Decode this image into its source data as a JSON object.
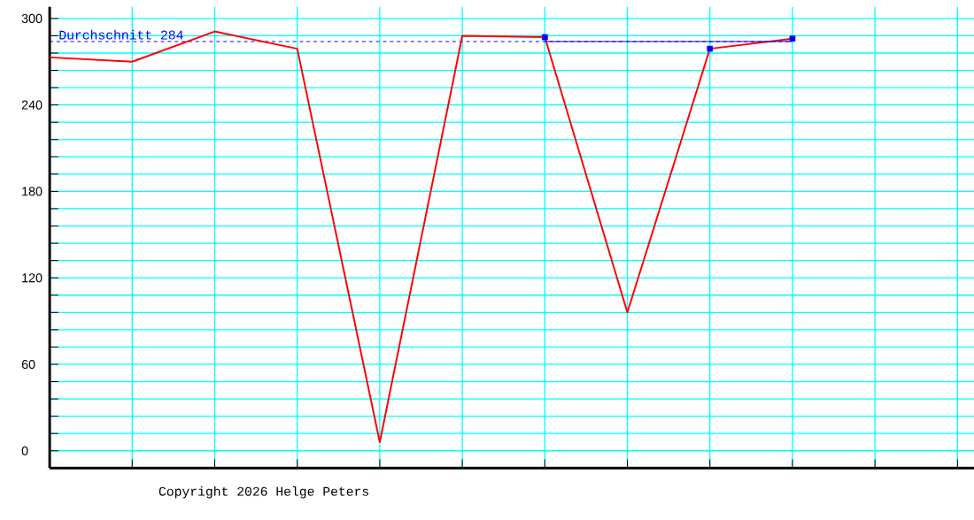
{
  "chart_data": {
    "type": "line",
    "categories": [
      null,
      null,
      null,
      null,
      null,
      null,
      null,
      null,
      null,
      null,
      null,
      null
    ],
    "series": [
      {
        "color": "#ff0000",
        "values": [
          273,
          270,
          291,
          279,
          6,
          288,
          287,
          96,
          279,
          286,
          null,
          null
        ]
      },
      {
        "type": "line",
        "color": "#0000ff",
        "values": [
          null,
          null,
          null,
          null,
          null,
          null,
          284,
          284,
          284,
          284,
          null,
          null
        ]
      },
      {
        "type": "scatter",
        "color": "#0000ff",
        "marker": "square",
        "values": [
          null,
          null,
          null,
          null,
          null,
          null,
          287,
          null,
          279,
          286,
          null,
          null
        ]
      }
    ],
    "ylim": [
      -12,
      308
    ],
    "yticks": [
      0,
      {
        "value": 12,
        "label": null
      },
      {
        "value": 24,
        "label": null
      },
      {
        "value": 36,
        "label": null
      },
      {
        "value": 48,
        "label": null
      },
      60,
      {
        "value": 72,
        "label": null
      },
      {
        "value": 84,
        "label": null
      },
      {
        "value": 96,
        "label": null
      },
      {
        "value": 108,
        "label": null
      },
      120,
      {
        "value": 132,
        "label": null
      },
      {
        "value": 144,
        "label": null
      },
      {
        "value": 156,
        "label": null
      },
      {
        "value": 168,
        "label": null
      },
      180,
      {
        "value": 192,
        "label": null
      },
      {
        "value": 204,
        "label": null
      },
      {
        "value": 216,
        "label": null
      },
      {
        "value": 228,
        "label": null
      },
      240,
      {
        "value": 252,
        "label": null
      },
      {
        "value": 264,
        "label": null
      },
      {
        "value": 276,
        "label": null
      },
      {
        "value": 288,
        "label": null
      },
      300
    ],
    "grid": true,
    "ref_lines": [
      {
        "axis": "y",
        "value": 284,
        "label": "Durchschnitt 284",
        "color": "#0000ff",
        "line_style": "dashed"
      }
    ],
    "annotations": [
      "Copyright 2026 Helge Peters"
    ]
  }
}
